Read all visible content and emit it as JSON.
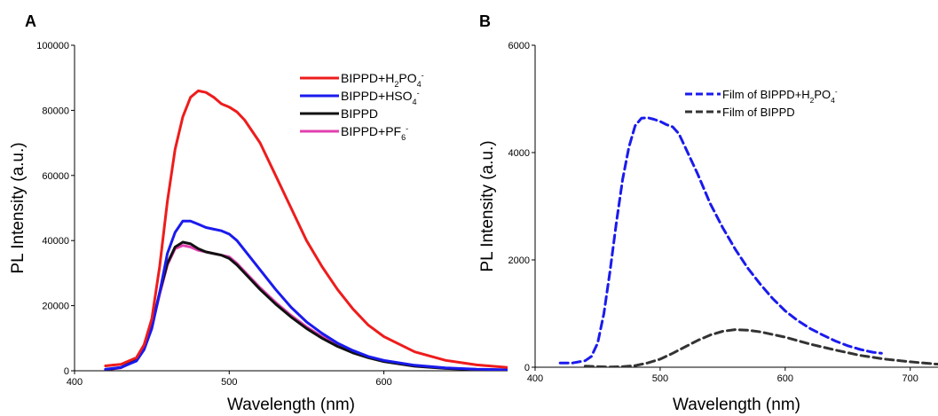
{
  "chart_data": [
    {
      "panel_label": "A",
      "type": "line",
      "xlabel": "Wavelength (nm)",
      "ylabel": "PL Intensity (a.u.)",
      "xlim": [
        400,
        680
      ],
      "ylim": [
        0,
        100000
      ],
      "xticks": [
        400,
        500,
        600
      ],
      "yticks": [
        0,
        20000,
        40000,
        60000,
        80000,
        100000
      ],
      "grid": false,
      "legend_position": "top-right",
      "series": [
        {
          "name": "BIPPD+H2PO4-",
          "legend_main": "BIPPD+H",
          "legend_sub": "2",
          "legend_mid": "PO",
          "legend_sub2": "4",
          "legend_sup": "-",
          "color": "#ee1c1c",
          "style": "solid",
          "x": [
            420,
            430,
            440,
            445,
            450,
            455,
            460,
            465,
            470,
            475,
            480,
            485,
            490,
            495,
            500,
            505,
            510,
            520,
            530,
            540,
            550,
            560,
            570,
            580,
            590,
            600,
            620,
            640,
            660,
            680
          ],
          "y": [
            1500,
            2000,
            4000,
            8000,
            16000,
            32000,
            52000,
            68000,
            78000,
            84000,
            86000,
            85500,
            84000,
            82000,
            81000,
            79500,
            77000,
            70000,
            60000,
            50000,
            40000,
            32000,
            25000,
            19000,
            14000,
            10500,
            5800,
            3200,
            1800,
            1000
          ]
        },
        {
          "name": "BIPPD+HSO4-",
          "legend_main": "BIPPD+HSO",
          "legend_sub": "4",
          "legend_sup": "-",
          "color": "#1a1aee",
          "style": "solid",
          "x": [
            420,
            430,
            440,
            445,
            450,
            455,
            460,
            465,
            470,
            475,
            480,
            485,
            490,
            495,
            500,
            505,
            510,
            520,
            530,
            540,
            550,
            560,
            570,
            580,
            590,
            600,
            620,
            640,
            660,
            680
          ],
          "y": [
            500,
            1000,
            3000,
            6500,
            13000,
            24000,
            36000,
            42500,
            46000,
            46000,
            45000,
            44000,
            43500,
            43000,
            42000,
            40000,
            37000,
            31000,
            25000,
            19500,
            15000,
            11500,
            8500,
            6200,
            4400,
            3200,
            1700,
            900,
            500,
            300
          ]
        },
        {
          "name": "BIPPD",
          "color": "#111111",
          "style": "solid",
          "x": [
            420,
            430,
            440,
            445,
            450,
            455,
            460,
            465,
            470,
            475,
            480,
            485,
            490,
            495,
            500,
            505,
            510,
            520,
            530,
            540,
            550,
            560,
            570,
            580,
            590,
            600,
            620,
            640,
            660,
            680
          ],
          "y": [
            300,
            1000,
            3500,
            7500,
            14000,
            24000,
            33000,
            38000,
            39500,
            39000,
            37500,
            36500,
            36000,
            35500,
            34500,
            32500,
            30000,
            25000,
            20500,
            16500,
            13000,
            10000,
            7500,
            5500,
            4000,
            2800,
            1400,
            700,
            400,
            200
          ]
        },
        {
          "name": "BIPPD+PF6-",
          "legend_main": "BIPPD+PF",
          "legend_sub": "6",
          "legend_sup": "-",
          "color": "#e040b0",
          "style": "solid",
          "x": [
            420,
            430,
            440,
            445,
            450,
            455,
            460,
            465,
            470,
            475,
            480,
            485,
            490,
            495,
            500,
            505,
            510,
            520,
            530,
            540,
            550,
            560,
            570,
            580,
            590,
            600,
            620,
            640,
            660,
            680
          ],
          "y": [
            300,
            900,
            3200,
            7000,
            13500,
            23500,
            32500,
            37500,
            38500,
            38000,
            37000,
            36500,
            36000,
            35500,
            35000,
            33000,
            30500,
            25500,
            21000,
            17000,
            13500,
            10500,
            8000,
            6000,
            4300,
            3000,
            1500,
            800,
            400,
            200
          ]
        }
      ]
    },
    {
      "panel_label": "B",
      "type": "line",
      "xlabel": "Wavelength (nm)",
      "ylabel": "PL Intensity (a.u.)",
      "xlim": [
        400,
        730
      ],
      "ylim": [
        0,
        6000
      ],
      "xticks": [
        400,
        500,
        600,
        700
      ],
      "yticks": [
        0,
        2000,
        4000,
        6000
      ],
      "grid": false,
      "legend_position": "top-right",
      "series": [
        {
          "name": "Film of BIPPD+H2PO4-",
          "legend_main": "Film of BIPPD+H",
          "legend_sub": "2",
          "legend_mid": "PO",
          "legend_sub2": "4",
          "legend_sup": "-",
          "color": "#1a1aee",
          "style": "dashed",
          "x": [
            420,
            430,
            440,
            445,
            450,
            455,
            460,
            465,
            470,
            475,
            480,
            485,
            490,
            495,
            500,
            505,
            510,
            515,
            520,
            530,
            540,
            550,
            560,
            570,
            580,
            590,
            600,
            610,
            620,
            630,
            640,
            650,
            660,
            670,
            677
          ],
          "y": [
            80,
            80,
            120,
            200,
            450,
            1000,
            1800,
            2700,
            3500,
            4100,
            4500,
            4640,
            4650,
            4620,
            4580,
            4520,
            4480,
            4350,
            4100,
            3600,
            3050,
            2600,
            2200,
            1850,
            1550,
            1280,
            1050,
            870,
            720,
            600,
            490,
            400,
            330,
            280,
            260
          ]
        },
        {
          "name": "Film of BIPPD",
          "color": "#333333",
          "style": "dashed",
          "x": [
            440,
            450,
            460,
            470,
            480,
            490,
            500,
            510,
            520,
            530,
            540,
            550,
            560,
            570,
            580,
            590,
            600,
            620,
            640,
            660,
            680,
            700,
            720,
            730
          ],
          "y": [
            20,
            10,
            5,
            10,
            30,
            80,
            150,
            260,
            380,
            500,
            600,
            670,
            700,
            690,
            660,
            610,
            560,
            430,
            320,
            220,
            150,
            100,
            60,
            50
          ]
        }
      ]
    }
  ]
}
